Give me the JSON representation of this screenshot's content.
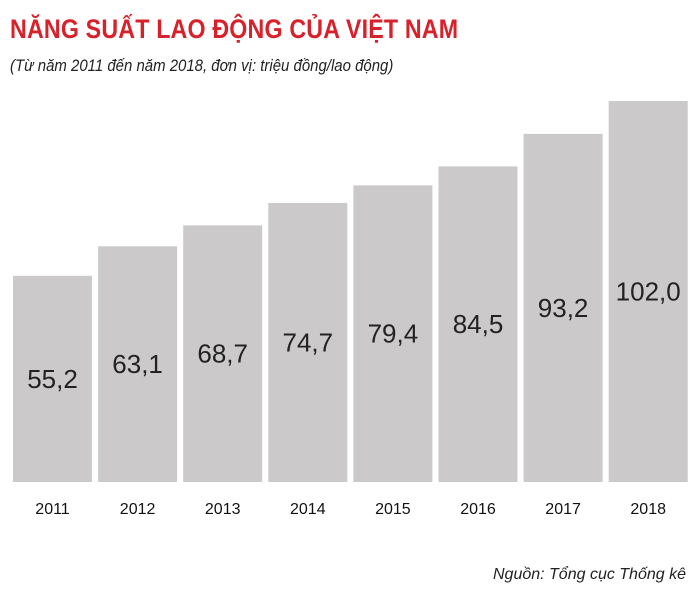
{
  "header": {
    "title": "NĂNG SUẤT LAO ĐỘNG CỦA VIỆT NAM",
    "subtitle": "(Từ năm 2011 đến năm 2018, đơn vị: triệu đồng/lao động)"
  },
  "footer": {
    "source": "Nguồn: Tổng cục Thống kê"
  },
  "colors": {
    "title": "#d7212b",
    "bar": "#cbc9ca"
  },
  "chart_data": {
    "type": "bar",
    "title": "NĂNG SUẤT LAO ĐỘNG CỦA VIỆT NAM",
    "subtitle": "(Từ năm 2011 đến năm 2018, đơn vị: triệu đồng/lao động)",
    "xlabel": "",
    "ylabel": "",
    "categories": [
      "2011",
      "2012",
      "2013",
      "2014",
      "2015",
      "2016",
      "2017",
      "2018"
    ],
    "values": [
      55.2,
      63.1,
      68.7,
      74.7,
      79.4,
      84.5,
      93.2,
      102.0
    ],
    "value_labels": [
      "55,2",
      "63,1",
      "68,7",
      "74,7",
      "79,4",
      "84,5",
      "93,2",
      "102,0"
    ],
    "ylim": [
      0,
      102.0
    ],
    "grid": false,
    "legend": "none"
  }
}
